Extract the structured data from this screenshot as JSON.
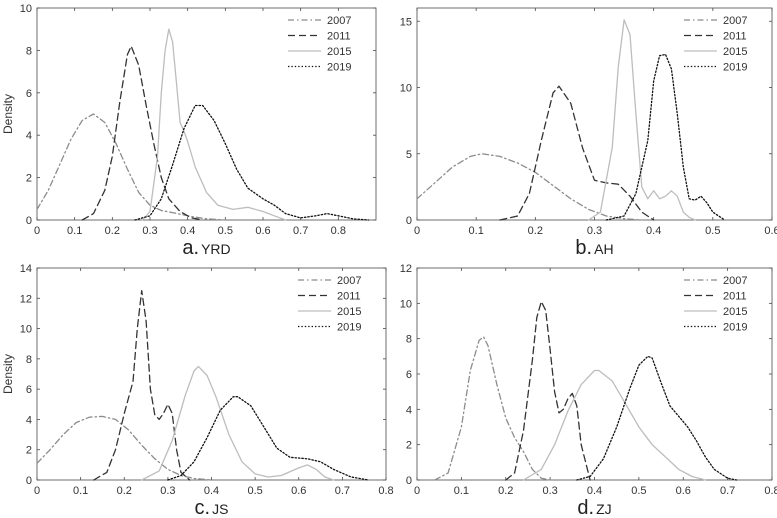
{
  "chart_data": [
    {
      "type": "line",
      "panel_letter": "a.",
      "panel_name": "YRD",
      "ylabel": "Density",
      "xlim": [
        0,
        0.9
      ],
      "ylim": [
        0,
        10
      ],
      "xticks": [
        "0",
        "0.1",
        "0.2",
        "0.3",
        "0.4",
        "0.5",
        "0.6",
        "0.7",
        "0.8"
      ],
      "yticks": [
        "0",
        "2",
        "4",
        "6",
        "8",
        "10"
      ],
      "legend_position": "top-right",
      "series": [
        {
          "name": "2007",
          "style": "dashdot",
          "color": "#8c8c8c",
          "x": [
            0,
            0.03,
            0.06,
            0.09,
            0.12,
            0.15,
            0.18,
            0.21,
            0.24,
            0.27,
            0.3,
            0.33,
            0.36,
            0.4,
            0.45,
            0.5
          ],
          "y": [
            0.5,
            1.4,
            2.6,
            3.8,
            4.7,
            5.0,
            4.6,
            3.6,
            2.4,
            1.3,
            0.7,
            0.45,
            0.35,
            0.2,
            0.05,
            0
          ]
        },
        {
          "name": "2011",
          "style": "dashed",
          "color": "#333333",
          "x": [
            0.12,
            0.15,
            0.18,
            0.2,
            0.22,
            0.24,
            0.25,
            0.27,
            0.29,
            0.31,
            0.33,
            0.35,
            0.38,
            0.41,
            0.44
          ],
          "y": [
            0,
            0.3,
            1.4,
            3.0,
            5.6,
            7.8,
            8.2,
            7.3,
            5.4,
            3.6,
            2.0,
            1.0,
            0.4,
            0.1,
            0
          ]
        },
        {
          "name": "2015",
          "style": "solid",
          "color": "#bdbdbd",
          "x": [
            0.28,
            0.3,
            0.32,
            0.33,
            0.34,
            0.35,
            0.36,
            0.37,
            0.38,
            0.39,
            0.4,
            0.42,
            0.45,
            0.48,
            0.52,
            0.56,
            0.6,
            0.63,
            0.66
          ],
          "y": [
            0,
            0.4,
            3.0,
            6.0,
            8.0,
            9.0,
            8.4,
            6.5,
            4.6,
            4.2,
            3.7,
            2.5,
            1.3,
            0.7,
            0.5,
            0.6,
            0.4,
            0.2,
            0
          ]
        },
        {
          "name": "2019",
          "style": "dotted",
          "color": "#111111",
          "x": [
            0.26,
            0.3,
            0.33,
            0.36,
            0.39,
            0.42,
            0.44,
            0.47,
            0.5,
            0.53,
            0.56,
            0.6,
            0.63,
            0.66,
            0.7,
            0.74,
            0.77,
            0.8,
            0.84,
            0.88
          ],
          "y": [
            0,
            0.2,
            1.0,
            2.6,
            4.3,
            5.4,
            5.4,
            4.7,
            3.6,
            2.4,
            1.5,
            1.0,
            0.7,
            0.3,
            0.1,
            0.2,
            0.3,
            0.2,
            0.05,
            0
          ]
        }
      ]
    },
    {
      "type": "line",
      "panel_letter": "b.",
      "panel_name": "AH",
      "ylabel": "",
      "xlim": [
        0,
        0.6
      ],
      "ylim": [
        0,
        16
      ],
      "xticks": [
        "0",
        "0.1",
        "0.2",
        "0.3",
        "0.4",
        "0.5",
        "0.6"
      ],
      "yticks": [
        "0",
        "5",
        "10",
        "15"
      ],
      "legend_position": "top-right",
      "series": [
        {
          "name": "2007",
          "style": "dashdot",
          "color": "#8c8c8c",
          "x": [
            0,
            0.03,
            0.06,
            0.09,
            0.11,
            0.14,
            0.17,
            0.2,
            0.23,
            0.26,
            0.29,
            0.32,
            0.35,
            0.38
          ],
          "y": [
            1.6,
            2.8,
            4.0,
            4.8,
            5.0,
            4.8,
            4.3,
            3.6,
            2.6,
            1.6,
            0.8,
            0.3,
            0.1,
            0
          ]
        },
        {
          "name": "2011",
          "style": "dashed",
          "color": "#333333",
          "x": [
            0.14,
            0.17,
            0.19,
            0.21,
            0.23,
            0.24,
            0.26,
            0.28,
            0.3,
            0.32,
            0.34,
            0.36,
            0.38,
            0.4
          ],
          "y": [
            0,
            0.3,
            2.0,
            6.0,
            9.6,
            10.1,
            8.8,
            5.4,
            3.0,
            2.8,
            2.7,
            1.8,
            0.6,
            0
          ]
        },
        {
          "name": "2015",
          "style": "solid",
          "color": "#bdbdbd",
          "x": [
            0.29,
            0.31,
            0.33,
            0.34,
            0.35,
            0.36,
            0.37,
            0.38,
            0.39,
            0.4,
            0.41,
            0.42,
            0.43,
            0.44,
            0.45,
            0.46,
            0.47
          ],
          "y": [
            0,
            0.6,
            5.5,
            11.5,
            15.1,
            14.0,
            8.0,
            2.5,
            1.6,
            2.2,
            1.6,
            1.8,
            2.2,
            1.8,
            0.6,
            0.2,
            0
          ]
        },
        {
          "name": "2019",
          "style": "dotted",
          "color": "#111111",
          "x": [
            0.32,
            0.35,
            0.37,
            0.39,
            0.4,
            0.41,
            0.42,
            0.43,
            0.44,
            0.45,
            0.46,
            0.47,
            0.48,
            0.49,
            0.5,
            0.52
          ],
          "y": [
            0,
            0.3,
            2.0,
            6.0,
            10.5,
            12.4,
            12.5,
            11.4,
            8.0,
            4.0,
            1.6,
            1.5,
            1.8,
            1.3,
            0.6,
            0
          ]
        }
      ]
    },
    {
      "type": "line",
      "panel_letter": "c.",
      "panel_name": "JS",
      "ylabel": "Density",
      "xlim": [
        0,
        0.8
      ],
      "ylim": [
        0,
        14
      ],
      "xticks": [
        "0",
        "0.1",
        "0.2",
        "0.3",
        "0.4",
        "0.5",
        "0.6",
        "0.7",
        "0.8"
      ],
      "yticks": [
        "0",
        "2",
        "4",
        "6",
        "8",
        "10",
        "12",
        "14"
      ],
      "legend_position": "top-right",
      "series": [
        {
          "name": "2007",
          "style": "dashdot",
          "color": "#8c8c8c",
          "x": [
            0,
            0.03,
            0.06,
            0.09,
            0.12,
            0.15,
            0.18,
            0.21,
            0.24,
            0.27,
            0.3,
            0.33,
            0.36,
            0.4
          ],
          "y": [
            1.1,
            2.0,
            3.0,
            3.8,
            4.15,
            4.2,
            4.0,
            3.3,
            2.3,
            1.4,
            0.7,
            0.3,
            0.1,
            0
          ]
        },
        {
          "name": "2011",
          "style": "dashed",
          "color": "#333333",
          "x": [
            0.13,
            0.16,
            0.18,
            0.2,
            0.22,
            0.23,
            0.24,
            0.25,
            0.26,
            0.27,
            0.28,
            0.29,
            0.3,
            0.31,
            0.32,
            0.33,
            0.35
          ],
          "y": [
            0,
            0.5,
            2.0,
            4.4,
            6.5,
            10.0,
            12.5,
            10.5,
            6.0,
            4.3,
            4.0,
            4.4,
            5.0,
            4.4,
            2.0,
            0.5,
            0
          ]
        },
        {
          "name": "2015",
          "style": "solid",
          "color": "#bdbdbd",
          "x": [
            0.24,
            0.28,
            0.31,
            0.34,
            0.36,
            0.37,
            0.39,
            0.41,
            0.44,
            0.47,
            0.5,
            0.53,
            0.56,
            0.6,
            0.62,
            0.64,
            0.66,
            0.68
          ],
          "y": [
            0,
            0.6,
            2.6,
            5.6,
            7.2,
            7.5,
            6.9,
            5.5,
            3.0,
            1.2,
            0.4,
            0.2,
            0.3,
            0.8,
            1.0,
            0.7,
            0.2,
            0
          ]
        },
        {
          "name": "2019",
          "style": "dotted",
          "color": "#111111",
          "x": [
            0.3,
            0.33,
            0.36,
            0.39,
            0.42,
            0.45,
            0.46,
            0.49,
            0.52,
            0.55,
            0.58,
            0.62,
            0.65,
            0.68,
            0.72,
            0.76
          ],
          "y": [
            0,
            0.3,
            1.2,
            2.8,
            4.6,
            5.5,
            5.5,
            4.9,
            3.5,
            2.1,
            1.5,
            1.4,
            1.2,
            0.7,
            0.2,
            0
          ]
        }
      ]
    },
    {
      "type": "line",
      "panel_letter": "d.",
      "panel_name": "ZJ",
      "ylabel": "",
      "xlim": [
        0,
        0.8
      ],
      "ylim": [
        0,
        12
      ],
      "xticks": [
        "0",
        "0.1",
        "0.2",
        "0.3",
        "0.4",
        "0.5",
        "0.6",
        "0.7",
        "0.8"
      ],
      "yticks": [
        "0",
        "2",
        "4",
        "6",
        "8",
        "10",
        "12"
      ],
      "legend_position": "top-right",
      "series": [
        {
          "name": "2007",
          "style": "dashdot",
          "color": "#8c8c8c",
          "x": [
            0.04,
            0.07,
            0.1,
            0.12,
            0.14,
            0.15,
            0.16,
            0.18,
            0.2,
            0.22,
            0.24,
            0.26,
            0.28,
            0.3
          ],
          "y": [
            0,
            0.4,
            3.0,
            6.2,
            7.9,
            8.1,
            7.6,
            5.4,
            3.5,
            2.4,
            1.6,
            0.6,
            0.1,
            0
          ]
        },
        {
          "name": "2011",
          "style": "dashed",
          "color": "#333333",
          "x": [
            0.2,
            0.22,
            0.24,
            0.26,
            0.27,
            0.28,
            0.29,
            0.3,
            0.31,
            0.32,
            0.33,
            0.34,
            0.35,
            0.36,
            0.37,
            0.39
          ],
          "y": [
            0,
            0.4,
            2.8,
            6.8,
            9.2,
            10.1,
            9.6,
            7.4,
            5.0,
            3.8,
            4.0,
            4.6,
            4.9,
            4.2,
            2.0,
            0
          ]
        },
        {
          "name": "2015",
          "style": "solid",
          "color": "#bdbdbd",
          "x": [
            0.24,
            0.28,
            0.31,
            0.34,
            0.37,
            0.4,
            0.41,
            0.44,
            0.47,
            0.5,
            0.53,
            0.56,
            0.59,
            0.62,
            0.65
          ],
          "y": [
            0,
            0.6,
            2.0,
            3.9,
            5.4,
            6.2,
            6.2,
            5.6,
            4.3,
            3.0,
            2.0,
            1.3,
            0.6,
            0.2,
            0
          ]
        },
        {
          "name": "2019",
          "style": "dotted",
          "color": "#111111",
          "x": [
            0.36,
            0.39,
            0.42,
            0.45,
            0.48,
            0.5,
            0.52,
            0.53,
            0.55,
            0.57,
            0.59,
            0.61,
            0.63,
            0.65,
            0.67,
            0.7,
            0.72
          ],
          "y": [
            0,
            0.2,
            1.2,
            3.0,
            5.2,
            6.5,
            7.0,
            6.9,
            5.5,
            4.2,
            3.6,
            3.0,
            2.2,
            1.3,
            0.6,
            0.1,
            0
          ]
        }
      ]
    }
  ]
}
